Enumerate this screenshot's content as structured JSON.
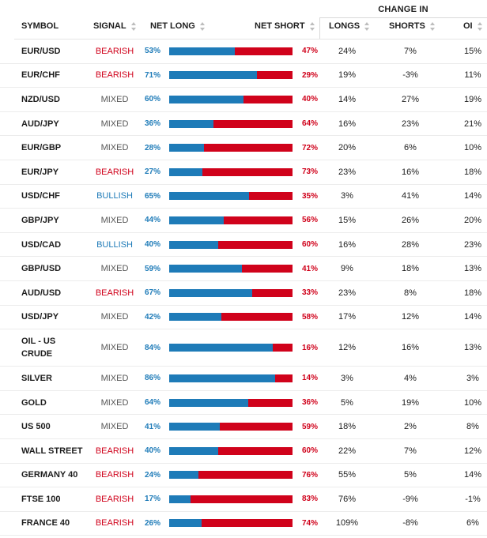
{
  "header": {
    "group_label": "CHANGE IN",
    "symbol": "SYMBOL",
    "signal": "SIGNAL",
    "net_long": "NET LONG",
    "net_short": "NET SHORT",
    "longs": "LONGS",
    "shorts": "SHORTS",
    "oi": "OI"
  },
  "colors": {
    "long": "#1e7bb8",
    "short": "#d0021b",
    "bearish": "#d0021b",
    "bullish": "#1e7bb8",
    "mixed": "#555555"
  },
  "rows": [
    {
      "symbol": "EUR/USD",
      "signal": "BEARISH",
      "net_long": "53%",
      "net_short": "47%",
      "long_frac": 0.53,
      "longs": "24%",
      "shorts": "7%",
      "oi": "15%"
    },
    {
      "symbol": "EUR/CHF",
      "signal": "BEARISH",
      "net_long": "71%",
      "net_short": "29%",
      "long_frac": 0.71,
      "longs": "19%",
      "shorts": "-3%",
      "oi": "11%"
    },
    {
      "symbol": "NZD/USD",
      "signal": "MIXED",
      "net_long": "60%",
      "net_short": "40%",
      "long_frac": 0.6,
      "longs": "14%",
      "shorts": "27%",
      "oi": "19%"
    },
    {
      "symbol": "AUD/JPY",
      "signal": "MIXED",
      "net_long": "36%",
      "net_short": "64%",
      "long_frac": 0.36,
      "longs": "16%",
      "shorts": "23%",
      "oi": "21%"
    },
    {
      "symbol": "EUR/GBP",
      "signal": "MIXED",
      "net_long": "28%",
      "net_short": "72%",
      "long_frac": 0.28,
      "longs": "20%",
      "shorts": "6%",
      "oi": "10%"
    },
    {
      "symbol": "EUR/JPY",
      "signal": "BEARISH",
      "net_long": "27%",
      "net_short": "73%",
      "long_frac": 0.27,
      "longs": "23%",
      "shorts": "16%",
      "oi": "18%"
    },
    {
      "symbol": "USD/CHF",
      "signal": "BULLISH",
      "net_long": "65%",
      "net_short": "35%",
      "long_frac": 0.65,
      "longs": "3%",
      "shorts": "41%",
      "oi": "14%"
    },
    {
      "symbol": "GBP/JPY",
      "signal": "MIXED",
      "net_long": "44%",
      "net_short": "56%",
      "long_frac": 0.44,
      "longs": "15%",
      "shorts": "26%",
      "oi": "20%"
    },
    {
      "symbol": "USD/CAD",
      "signal": "BULLISH",
      "net_long": "40%",
      "net_short": "60%",
      "long_frac": 0.4,
      "longs": "16%",
      "shorts": "28%",
      "oi": "23%"
    },
    {
      "symbol": "GBP/USD",
      "signal": "MIXED",
      "net_long": "59%",
      "net_short": "41%",
      "long_frac": 0.59,
      "longs": "9%",
      "shorts": "18%",
      "oi": "13%"
    },
    {
      "symbol": "AUD/USD",
      "signal": "BEARISH",
      "net_long": "67%",
      "net_short": "33%",
      "long_frac": 0.67,
      "longs": "23%",
      "shorts": "8%",
      "oi": "18%"
    },
    {
      "symbol": "USD/JPY",
      "signal": "MIXED",
      "net_long": "42%",
      "net_short": "58%",
      "long_frac": 0.42,
      "longs": "17%",
      "shorts": "12%",
      "oi": "14%"
    },
    {
      "symbol": "OIL - US\nCRUDE",
      "signal": "MIXED",
      "net_long": "84%",
      "net_short": "16%",
      "long_frac": 0.84,
      "longs": "12%",
      "shorts": "16%",
      "oi": "13%",
      "tall": true
    },
    {
      "symbol": "SILVER",
      "signal": "MIXED",
      "net_long": "86%",
      "net_short": "14%",
      "long_frac": 0.86,
      "longs": "3%",
      "shorts": "4%",
      "oi": "3%"
    },
    {
      "symbol": "GOLD",
      "signal": "MIXED",
      "net_long": "64%",
      "net_short": "36%",
      "long_frac": 0.64,
      "longs": "5%",
      "shorts": "19%",
      "oi": "10%"
    },
    {
      "symbol": "US 500",
      "signal": "MIXED",
      "net_long": "41%",
      "net_short": "59%",
      "long_frac": 0.41,
      "longs": "18%",
      "shorts": "2%",
      "oi": "8%"
    },
    {
      "symbol": "WALL STREET",
      "signal": "BEARISH",
      "net_long": "40%",
      "net_short": "60%",
      "long_frac": 0.4,
      "longs": "22%",
      "shorts": "7%",
      "oi": "12%"
    },
    {
      "symbol": "GERMANY 40",
      "signal": "BEARISH",
      "net_long": "24%",
      "net_short": "76%",
      "long_frac": 0.24,
      "longs": "55%",
      "shorts": "5%",
      "oi": "14%"
    },
    {
      "symbol": "FTSE 100",
      "signal": "BEARISH",
      "net_long": "17%",
      "net_short": "83%",
      "long_frac": 0.17,
      "longs": "76%",
      "shorts": "-9%",
      "oi": "-1%"
    },
    {
      "symbol": "FRANCE 40",
      "signal": "BEARISH",
      "net_long": "26%",
      "net_short": "74%",
      "long_frac": 0.26,
      "longs": "109%",
      "shorts": "-8%",
      "oi": "6%"
    }
  ]
}
